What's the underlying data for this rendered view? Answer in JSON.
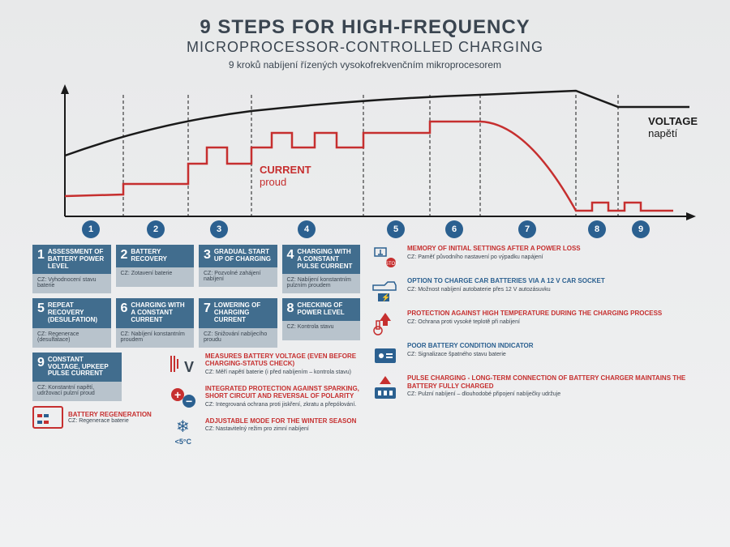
{
  "title": {
    "main": "9 STEPS FOR HIGH-FREQUENCY",
    "sub": "MICROPROCESSOR-CONTROLLED CHARGING",
    "czech": "9 kroků nabíjení řízených vysokofrekvenčním mikroprocesorem"
  },
  "chart": {
    "labels": {
      "voltage": "VOLTAGE",
      "voltage_cz": "napětí",
      "current": "CURRENT",
      "current_cz": "proud"
    },
    "colors": {
      "voltage": "#1a1a1a",
      "current": "#c62f2f",
      "axis": "#1a1a1a",
      "divider": "#1a1a1a",
      "circle": "#2b6090"
    },
    "steps": [
      1,
      2,
      3,
      4,
      5,
      6,
      7,
      8,
      9
    ],
    "step_x": [
      42,
      122,
      200,
      308,
      418,
      490,
      580,
      666,
      720
    ]
  },
  "step_cards": [
    {
      "n": "1",
      "title": "ASSESSMENT OF BATTERY POWER LEVEL",
      "cz": "CZ: Vyhodnocení stavu baterie"
    },
    {
      "n": "2",
      "title": "BATTERY RECOVERY",
      "cz": "CZ: Zotavení baterie"
    },
    {
      "n": "3",
      "title": "GRADUAL START UP OF CHARGING",
      "cz": "CZ: Pozvolné zahájení nabíjení"
    },
    {
      "n": "4",
      "title": "CHARGING WITH A CONSTANT PULSE CURRENT",
      "cz": "CZ: Nabíjení konstantním pulzním proudem"
    },
    {
      "n": "5",
      "title": "REPEAT RECOVERY (DESULFATION)",
      "cz": "CZ: Regenerace (desulfatace)"
    },
    {
      "n": "6",
      "title": "CHARGING WITH A CONSTANT CURRENT",
      "cz": "CZ: Nabíjení konstantním proudem"
    },
    {
      "n": "7",
      "title": "LOWERING OF CHARGING CURRENT",
      "cz": "CZ: Snižování nabíjecího proudu"
    },
    {
      "n": "8",
      "title": "CHECKING OF POWER LEVEL",
      "cz": "CZ: Kontrola stavu"
    },
    {
      "n": "9",
      "title": "CONSTANT VOLTAGE, UPKEEP PULSE CURRENT",
      "cz": "CZ: Konstantní napětí, udržovací pulzní proud"
    }
  ],
  "regen": {
    "title": "BATTERY REGENERATION",
    "cz": "CZ: Regenerace baterie"
  },
  "mid_features": [
    {
      "icon": "V",
      "title": "MEASURES BATTERY VOLTAGE (EVEN BEFORE CHARGING-STATUS CHECK)",
      "cz": "CZ: Měří napětí baterie (i před nabíjením – kontrola stavu)"
    },
    {
      "icon": "±",
      "title": "INTEGRATED PROTECTION AGAINST SPARKING, SHORT CIRCUIT AND REVERSAL OF POLARITY",
      "cz": "CZ: Integrovaná ochrana proti jiskření, zkratu a přepólování."
    },
    {
      "icon": "❄",
      "title": "ADJUSTABLE MODE FOR THE WINTER SEASON",
      "cz": "CZ: Nastavitelný režim pro zimní nabíjení",
      "extra": "<5°C"
    }
  ],
  "right_features": [
    {
      "title": "MEMORY OF INITIAL SETTINGS AFTER A POWER LOSS",
      "cz": "CZ: Paměť původního nastavení po výpadku napájení",
      "color": "red"
    },
    {
      "title": "OPTION TO CHARGE CAR BATTERIES VIA A 12 V CAR SOCKET",
      "cz": "CZ: Možnost nabíjení autobaterie přes 12 V autozásuvku",
      "color": "blue"
    },
    {
      "title": "PROTECTION AGAINST HIGH TEMPERATURE DURING THE CHARGING PROCESS",
      "cz": "CZ: Ochrana proti vysoké teplotě při nabíjení",
      "color": "red"
    },
    {
      "title": "POOR BATTERY CONDITION INDICATOR",
      "cz": "CZ: Signalizace špatného stavu baterie",
      "color": "blue"
    },
    {
      "title": "PULSE CHARGING - LONG-TERM CONNECTION OF BATTERY CHARGER MAINTAINS THE BATTERY FULLY CHARGED",
      "cz": "CZ: Pulzní nabíjení – dlouhodobé připojení nabíječky udržuje",
      "color": "red"
    }
  ]
}
